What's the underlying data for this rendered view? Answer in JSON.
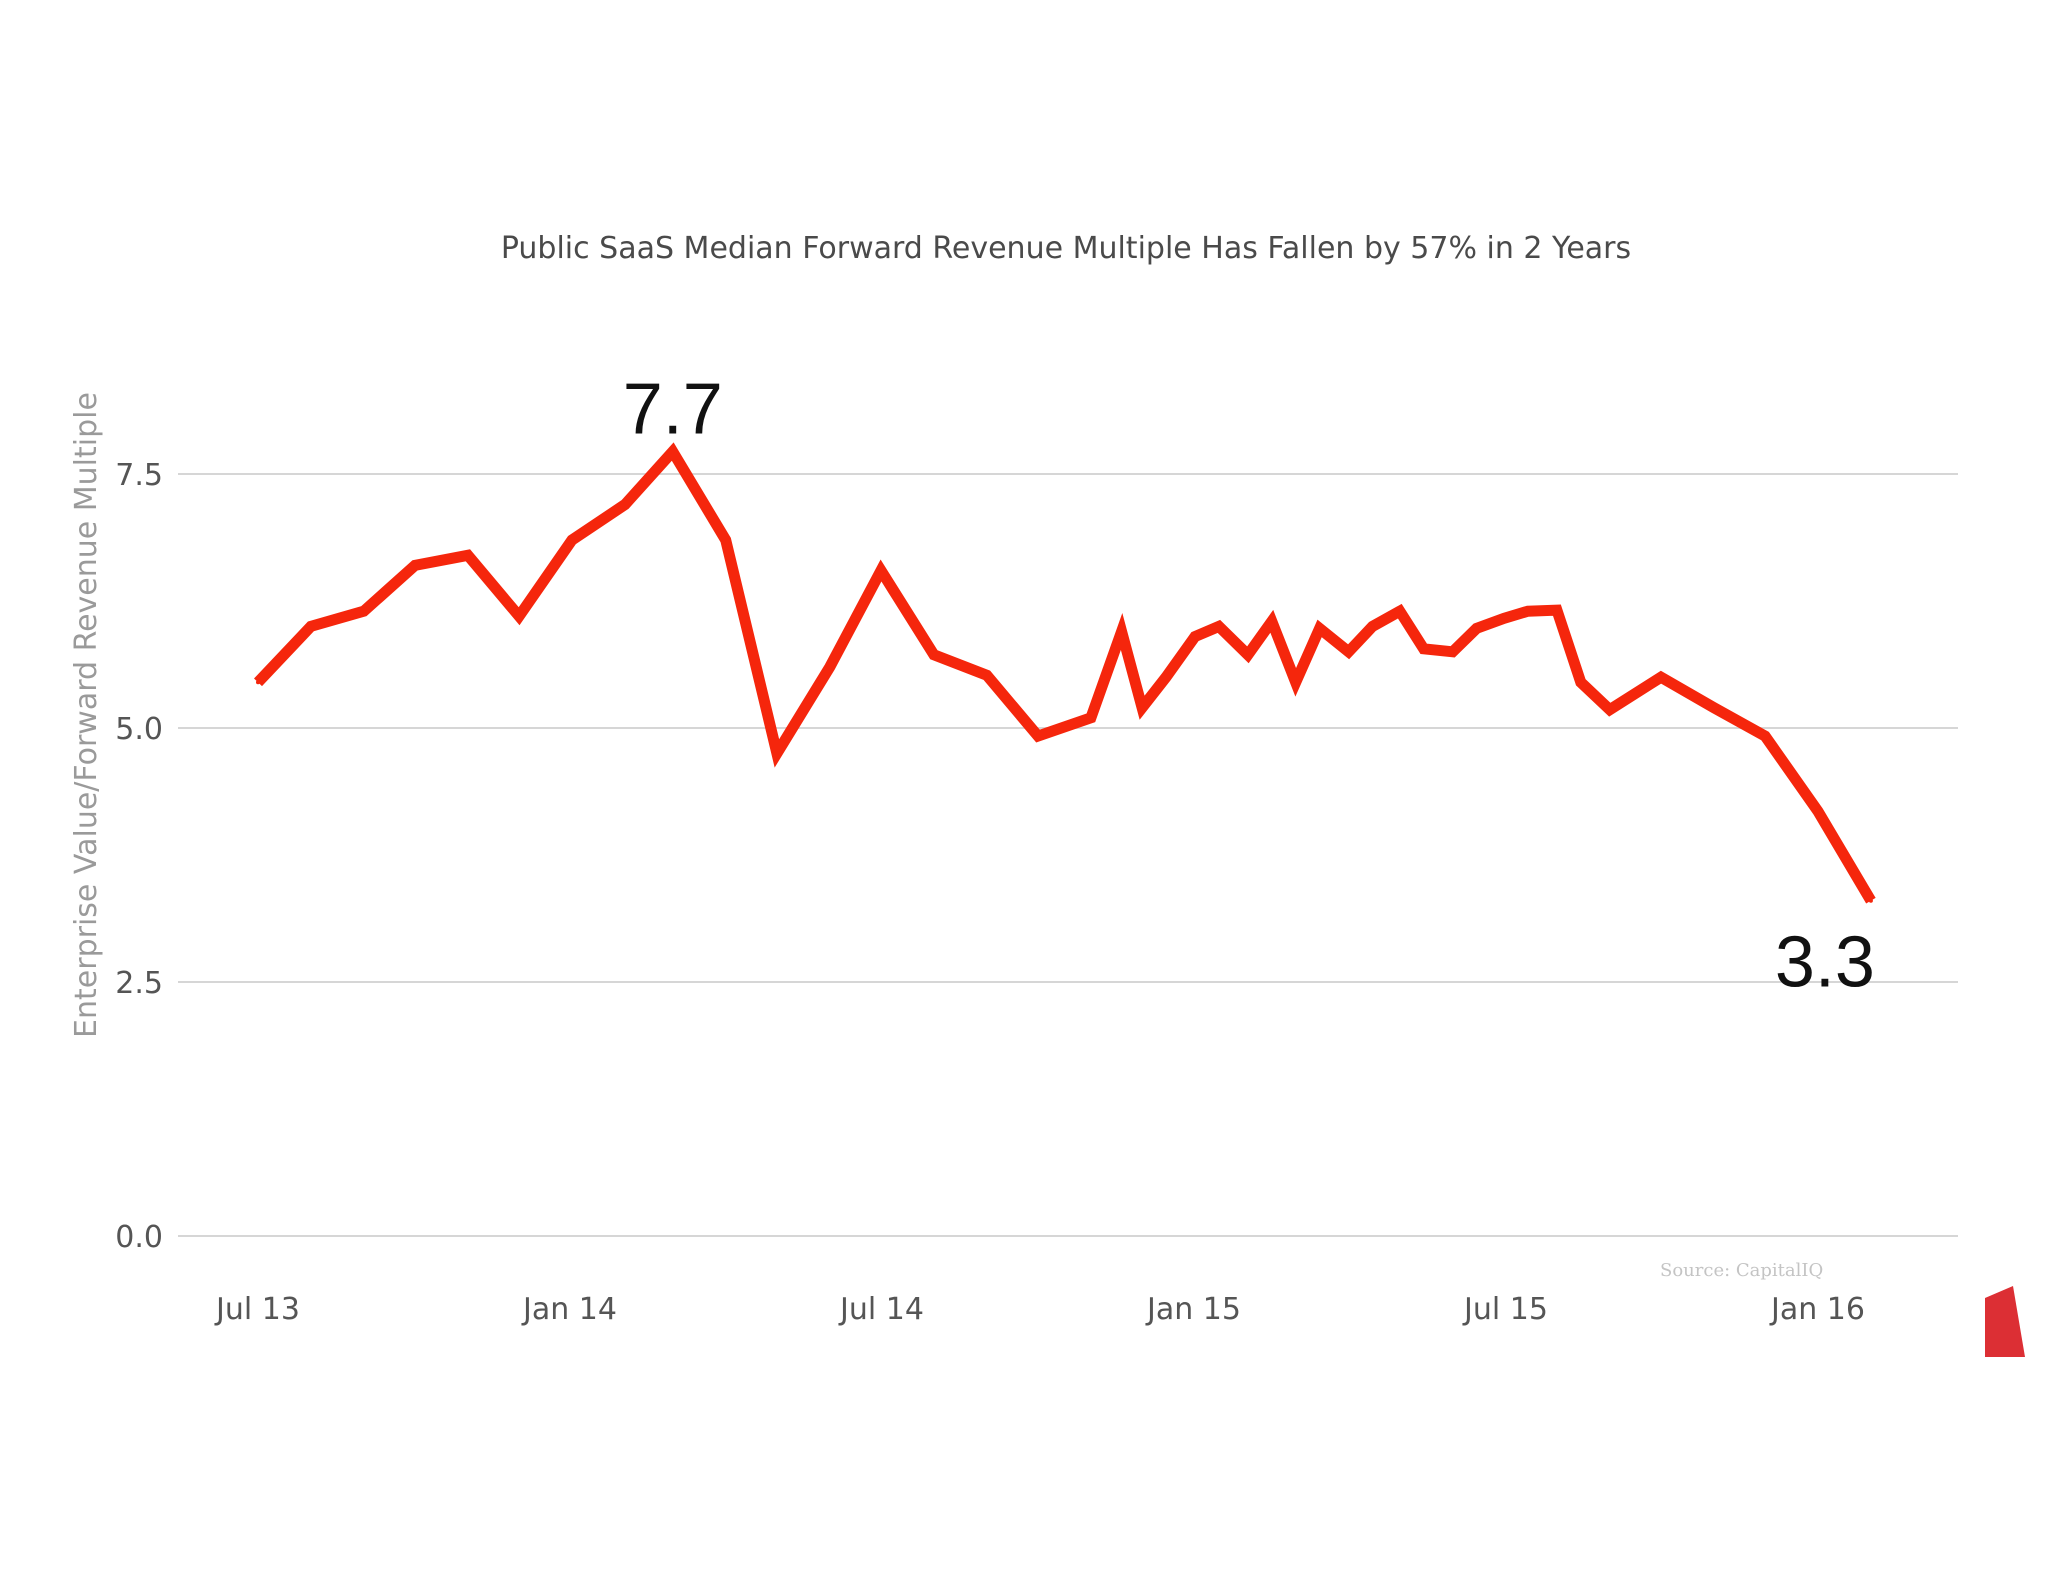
{
  "chart_data": {
    "type": "line",
    "title": "Public SaaS Median Forward Revenue Multiple Has Fallen by 57% in 2 Years",
    "xlabel": "",
    "ylabel": "Enterprise Value/Forward Revenue Multiple",
    "ylim": [
      0,
      8.5
    ],
    "yticks": [
      "0.0",
      "2.5",
      "5.0",
      "7.5"
    ],
    "xticks": [
      "Jul 13",
      "Jan 14",
      "Jul 14",
      "Jan 15",
      "Jul 15",
      "Jan 16"
    ],
    "grid": true,
    "series": [
      {
        "color": "#f5260c",
        "x": [
          "2013-07-01",
          "2013-08-01",
          "2013-09-01",
          "2013-10-01",
          "2013-11-01",
          "2013-12-01",
          "2014-01-01",
          "2014-02-01",
          "2014-03-01",
          "2014-04-01",
          "2014-05-01",
          "2014-06-01",
          "2014-07-01",
          "2014-08-01",
          "2014-09-01",
          "2014-10-01",
          "2014-11-01",
          "2014-11-19",
          "2014-12-01",
          "2014-12-15",
          "2015-01-01",
          "2015-01-15",
          "2015-02-01",
          "2015-02-15",
          "2015-03-01",
          "2015-03-15",
          "2015-04-01",
          "2015-04-15",
          "2015-05-01",
          "2015-05-15",
          "2015-06-01",
          "2015-06-15",
          "2015-07-01",
          "2015-07-15",
          "2015-08-01",
          "2015-08-15",
          "2015-09-01",
          "2015-10-01",
          "2015-11-01",
          "2015-12-01",
          "2016-01-01",
          "2016-02-01"
        ],
        "values": [
          5.45,
          6.0,
          6.15,
          6.6,
          6.7,
          6.1,
          6.85,
          7.2,
          7.72,
          6.85,
          4.75,
          5.6,
          6.55,
          5.72,
          5.52,
          4.92,
          5.1,
          5.95,
          5.2,
          5.5,
          5.9,
          6.0,
          5.72,
          6.05,
          5.45,
          5.98,
          5.75,
          6.0,
          6.15,
          5.78,
          5.75,
          5.98,
          6.08,
          6.15,
          6.16,
          5.45,
          5.18,
          5.5,
          5.2,
          4.92,
          4.18,
          3.3
        ]
      }
    ],
    "annotations": [
      {
        "text": "7.7",
        "x": "2014-03-01",
        "y": 7.72
      },
      {
        "text": "3.3",
        "x": "2016-02-01",
        "y": 3.3
      }
    ],
    "source": "Source: CapitalIQ"
  },
  "brand": {
    "accent_color": "#dc2f34",
    "logo_icon": "red-corner-logo-icon"
  }
}
